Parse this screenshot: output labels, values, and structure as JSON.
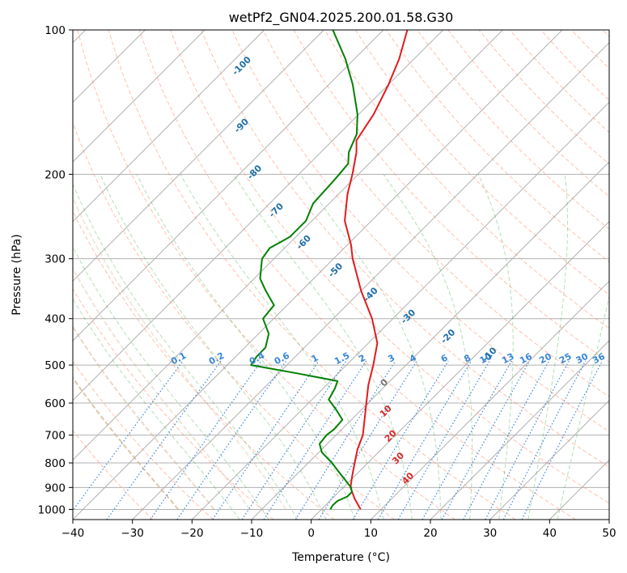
{
  "chart_data": {
    "type": "skew-t log-p diagram",
    "title": "wetPf2_GN04.2025.200.01.58.G30",
    "xlabel": "Temperature (°C)",
    "ylabel": "Pressure (hPa)",
    "xlim": [
      -40,
      50
    ],
    "ylim": [
      1050,
      100
    ],
    "y_scale": "log",
    "x_ticks": [
      -40,
      -30,
      -20,
      -10,
      0,
      10,
      20,
      30,
      40,
      50
    ],
    "y_ticks": [
      100,
      200,
      300,
      400,
      500,
      600,
      700,
      800,
      900,
      1000
    ],
    "grid": true,
    "series": [
      {
        "role": "temperature",
        "color": "#e31a1c",
        "points": [
          [
            1000,
            6.6
          ],
          [
            950,
            3.8
          ],
          [
            900,
            1.2
          ],
          [
            850,
            -0.5
          ],
          [
            800,
            -2.2
          ],
          [
            750,
            -4.0
          ],
          [
            700,
            -5.5
          ],
          [
            650,
            -7.8
          ],
          [
            600,
            -10.3
          ],
          [
            550,
            -13.0
          ],
          [
            500,
            -15.5
          ],
          [
            450,
            -18.5
          ],
          [
            400,
            -23.5
          ],
          [
            350,
            -30.0
          ],
          [
            300,
            -36.8
          ],
          [
            280,
            -39.5
          ],
          [
            250,
            -44.5
          ],
          [
            220,
            -48.5
          ],
          [
            200,
            -51.0
          ],
          [
            180,
            -54.0
          ],
          [
            170,
            -56.0
          ],
          [
            150,
            -57.5
          ],
          [
            130,
            -60.0
          ],
          [
            115,
            -62.5
          ],
          [
            100,
            -66.0
          ]
        ]
      },
      {
        "role": "dewpoint",
        "color": "#008000",
        "points": [
          [
            1000,
            1.5
          ],
          [
            980,
            1.2
          ],
          [
            960,
            1.3
          ],
          [
            940,
            2.2
          ],
          [
            920,
            2.2
          ],
          [
            900,
            1.3
          ],
          [
            870,
            -0.8
          ],
          [
            840,
            -3.0
          ],
          [
            800,
            -6.0
          ],
          [
            760,
            -9.5
          ],
          [
            730,
            -11.3
          ],
          [
            700,
            -11.6
          ],
          [
            680,
            -11.3
          ],
          [
            650,
            -11.5
          ],
          [
            620,
            -14.2
          ],
          [
            590,
            -17.2
          ],
          [
            560,
            -18.0
          ],
          [
            540,
            -18.8
          ],
          [
            520,
            -27.0
          ],
          [
            500,
            -36.0
          ],
          [
            480,
            -36.5
          ],
          [
            460,
            -36.5
          ],
          [
            430,
            -38.3
          ],
          [
            400,
            -41.8
          ],
          [
            375,
            -42.2
          ],
          [
            350,
            -46.0
          ],
          [
            330,
            -49.0
          ],
          [
            300,
            -52.0
          ],
          [
            285,
            -52.5
          ],
          [
            270,
            -51.0
          ],
          [
            250,
            -51.0
          ],
          [
            230,
            -52.7
          ],
          [
            210,
            -53.0
          ],
          [
            200,
            -53.2
          ],
          [
            190,
            -53.5
          ],
          [
            180,
            -55.3
          ],
          [
            165,
            -57.0
          ],
          [
            150,
            -60.2
          ],
          [
            130,
            -66.0
          ],
          [
            115,
            -71.5
          ],
          [
            100,
            -78.5
          ]
        ]
      }
    ],
    "reference_lines": {
      "isotherms": {
        "color": "#aaaaaa",
        "style": "solid"
      },
      "dry_adiabats": {
        "color": "#ff8c69",
        "style": "dashed",
        "labels": [
          "-100",
          "-90",
          "-80",
          "-70",
          "-60",
          "-50",
          "-40",
          "-30",
          "-20",
          "-10"
        ],
        "label_color": "#1f6fa8"
      },
      "moist_adiabats": {
        "color": "#2ca02c",
        "style": "dashed"
      },
      "mixing_ratio": {
        "color": "#3a86d8",
        "style": "dotted",
        "labels": [
          "0.1",
          "0.2",
          "0.4",
          "0.6",
          "1",
          "1.5",
          "2",
          "3",
          "4",
          "6",
          "8",
          "10",
          "13",
          "16",
          "20",
          "25",
          "30",
          "36"
        ]
      },
      "wet_bulb_potential_temperature": {
        "color": "#d2b48c",
        "style": "dashed",
        "labels": [
          "0",
          "10",
          "20",
          "30",
          "40"
        ],
        "label_colors": [
          "#777777",
          "#d62728",
          "#d62728",
          "#d62728",
          "#d62728"
        ]
      }
    }
  }
}
